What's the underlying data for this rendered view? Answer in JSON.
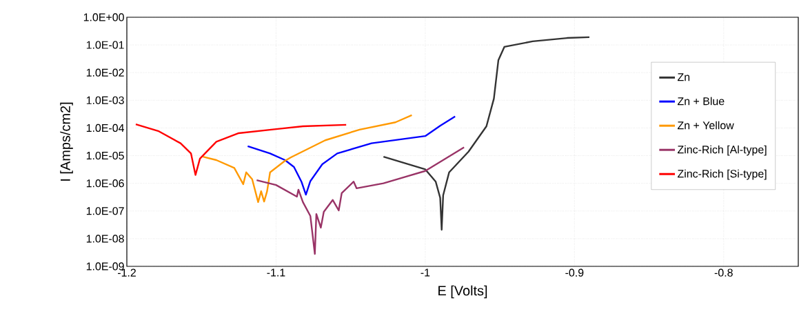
{
  "chart_data": {
    "type": "line",
    "xlabel": "E [Volts]",
    "ylabel": "I [Amps/cm2]",
    "xlim": [
      -1.2,
      -0.75
    ],
    "xticks": [
      -1.2,
      -1.1,
      -1,
      -0.9,
      -0.8
    ],
    "ylim": [
      1e-09,
      1
    ],
    "log": "y",
    "yticks": [
      {
        "value": 1,
        "label": "1.0E+00"
      },
      {
        "value": 0.1,
        "label": "1.0E-01"
      },
      {
        "value": 0.01,
        "label": "1.0E-02"
      },
      {
        "value": 0.001,
        "label": "1.0E-03"
      },
      {
        "value": 0.0001,
        "label": "1.0E-04"
      },
      {
        "value": 1e-05,
        "label": "1.0E-05"
      },
      {
        "value": 1e-06,
        "label": "1.0E-06"
      },
      {
        "value": 1e-07,
        "label": "1.0E-07"
      },
      {
        "value": 1e-08,
        "label": "1.0E-08"
      },
      {
        "value": 1e-09,
        "label": "1.0E-09"
      }
    ],
    "grid": true,
    "legend": "right",
    "line_style": "solid",
    "marker": "none",
    "series": [
      {
        "name": "Zn",
        "color": "#333333",
        "x": [
          -1.028,
          -1.0,
          -0.993,
          -0.99,
          -0.989,
          -0.988,
          -0.984,
          -0.971,
          -0.959,
          -0.954,
          -0.951,
          -0.947,
          -0.928,
          -0.905,
          -0.89
        ],
        "values": [
          9.1e-06,
          3.2e-06,
          1.15e-06,
          3e-07,
          2.1e-08,
          3.7e-07,
          2.5e-06,
          1.4e-05,
          0.000115,
          0.00115,
          0.028,
          0.085,
          0.135,
          0.178,
          0.19
        ]
      },
      {
        "name": "Zn + Blue",
        "color": "#0000ff",
        "x": [
          -1.119,
          -1.104,
          -1.094,
          -1.088,
          -1.083,
          -1.08,
          -1.077,
          -1.069,
          -1.059,
          -1.036,
          -1.0,
          -0.99,
          -0.98
        ],
        "values": [
          2.2e-05,
          1.2e-05,
          6.9e-06,
          3.9e-06,
          1.15e-06,
          3.9e-07,
          1.2e-06,
          4.9e-06,
          1.2e-05,
          2.8e-05,
          5.1e-05,
          0.00012,
          0.00026
        ]
      },
      {
        "name": "Zn + Yellow",
        "color": "#ff9900",
        "x": [
          -1.149,
          -1.14,
          -1.128,
          -1.122,
          -1.12,
          -1.116,
          -1.112,
          -1.11,
          -1.108,
          -1.106,
          -1.104,
          -1.094,
          -1.09,
          -1.067,
          -1.044,
          -1.02,
          -1.009
        ],
        "values": [
          9.1e-06,
          6.9e-06,
          3.6e-06,
          9.3e-07,
          2.5e-06,
          1.4e-06,
          2.1e-07,
          5.2e-07,
          2.2e-07,
          5.2e-07,
          2.5e-06,
          6.5e-06,
          8.7e-06,
          3.6e-05,
          8.7e-05,
          0.00016,
          0.00029
        ]
      },
      {
        "name": "Zinc-Rich [Al-type]",
        "color": "#993366",
        "x": [
          -1.113,
          -1.1,
          -1.086,
          -1.085,
          -1.082,
          -1.077,
          -1.074,
          -1.073,
          -1.07,
          -1.068,
          -1.062,
          -1.058,
          -1.056,
          -1.048,
          -1.046,
          -1.028,
          -1.0,
          -0.974
        ],
        "values": [
          1.3e-06,
          8.7e-07,
          3.3e-07,
          5.9e-07,
          2.1e-07,
          6.6e-08,
          2.8e-09,
          7.8e-08,
          2.5e-08,
          9.3e-08,
          2.5e-07,
          1.05e-07,
          4.4e-07,
          1.15e-06,
          6.6e-07,
          1e-06,
          2.8e-06,
          2e-05
        ]
      },
      {
        "name": "Zinc-Rich [Si-type]",
        "color": "#ff0000",
        "x": [
          -1.194,
          -1.179,
          -1.164,
          -1.157,
          -1.154,
          -1.151,
          -1.14,
          -1.125,
          -1.1,
          -1.082,
          -1.053
        ],
        "values": [
          0.000135,
          7.8e-05,
          2.8e-05,
          1.2e-05,
          2e-06,
          7.8e-06,
          3.2e-05,
          6.5e-05,
          9.1e-05,
          0.000115,
          0.00013
        ]
      }
    ]
  }
}
